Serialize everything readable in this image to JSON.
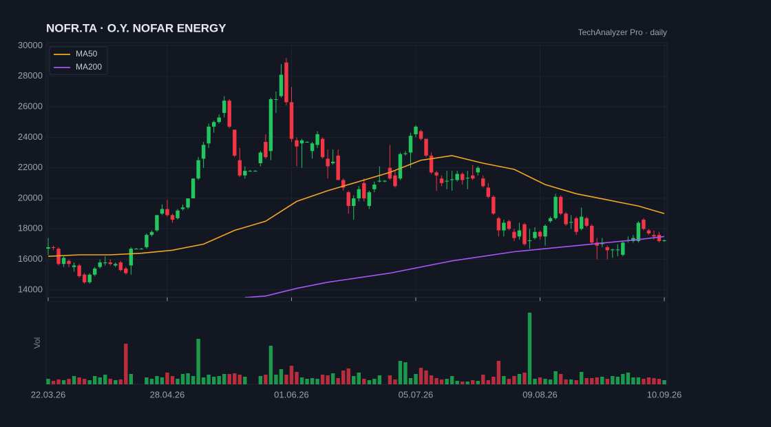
{
  "chart_data": {
    "type": "candlestick",
    "title": "NOFR.TA  ·  O.Y. NOFAR ENERGY",
    "subtitle": "TechAnalyzer Pro · daily",
    "volume_label": "Vol",
    "legend": "upper left",
    "grid": true,
    "up_color": "#22c55e",
    "down_color": "#f23645",
    "xlim": [
      0,
      119
    ],
    "xticks": [
      {
        "value": 0,
        "label": "22.03.26"
      },
      {
        "value": 23,
        "label": "28.04.26"
      },
      {
        "value": 47,
        "label": "01.06.26"
      },
      {
        "value": 71,
        "label": "05.07.26"
      },
      {
        "value": 95,
        "label": "09.08.26"
      },
      {
        "value": 119,
        "label": "10.09.26"
      }
    ],
    "ylim": [
      13500,
      30200
    ],
    "yticks": [
      14000,
      16000,
      18000,
      20000,
      22000,
      24000,
      26000,
      28000,
      30000
    ],
    "volume_ylim": [
      0,
      118
    ],
    "ohlc": [
      [
        16700,
        17400,
        16300,
        16800
      ],
      [
        16800,
        16900,
        16600,
        16750
      ],
      [
        16700,
        16800,
        15600,
        15700
      ],
      [
        15700,
        16200,
        15500,
        16100
      ],
      [
        15900,
        16000,
        15500,
        15700
      ],
      [
        15500,
        15800,
        15200,
        15600
      ],
      [
        15600,
        15700,
        14800,
        14900
      ],
      [
        15000,
        15100,
        14400,
        14500
      ],
      [
        14500,
        15100,
        14400,
        15000
      ],
      [
        15000,
        15500,
        14900,
        15400
      ],
      [
        15500,
        16000,
        15400,
        15800
      ],
      [
        15750,
        16200,
        15600,
        15800
      ],
      [
        15800,
        16000,
        15600,
        15700
      ],
      [
        15600,
        15800,
        15500,
        15700
      ],
      [
        15800,
        15900,
        15200,
        15300
      ],
      [
        15400,
        15500,
        15000,
        15100
      ],
      [
        15600,
        16800,
        15000,
        16700
      ],
      [
        16700,
        16750,
        16650,
        16700
      ],
      [
        16700,
        16750,
        16650,
        16700
      ],
      [
        16800,
        17700,
        16700,
        17600
      ],
      [
        17600,
        17900,
        17500,
        17800
      ],
      [
        17900,
        18900,
        17800,
        18900
      ],
      [
        19000,
        19600,
        18900,
        19300
      ],
      [
        19300,
        19900,
        18800,
        18900
      ],
      [
        18900,
        19000,
        18400,
        18600
      ],
      [
        18700,
        19300,
        18600,
        19200
      ],
      [
        19300,
        19600,
        19200,
        19400
      ],
      [
        19400,
        20000,
        19300,
        20000
      ],
      [
        20000,
        21300,
        20000,
        21300
      ],
      [
        21300,
        22700,
        21200,
        22500
      ],
      [
        22600,
        23700,
        22000,
        23500
      ],
      [
        23600,
        24900,
        23300,
        24700
      ],
      [
        24700,
        25100,
        24300,
        25000
      ],
      [
        25000,
        25500,
        24900,
        25300
      ],
      [
        25600,
        26700,
        25300,
        26400
      ],
      [
        26400,
        26500,
        24600,
        24700
      ],
      [
        24500,
        24500,
        22700,
        22800
      ],
      [
        22500,
        23300,
        21400,
        21500
      ],
      [
        21500,
        22100,
        21300,
        21800
      ],
      [
        21800,
        21850,
        21750,
        21800
      ],
      [
        21800,
        21850,
        21750,
        21800
      ],
      [
        22300,
        23100,
        22100,
        23000
      ],
      [
        23700,
        24200,
        22600,
        22700
      ],
      [
        23100,
        26600,
        22500,
        26500
      ],
      [
        26500,
        27000,
        25600,
        26500
      ],
      [
        26700,
        28800,
        26600,
        28100
      ],
      [
        28900,
        29200,
        26100,
        26300
      ],
      [
        26300,
        27300,
        23700,
        23900
      ],
      [
        23800,
        24000,
        22100,
        23400
      ],
      [
        23600,
        23900,
        22000,
        23800
      ],
      [
        23700,
        23750,
        23650,
        23700
      ],
      [
        23100,
        23700,
        22600,
        23600
      ],
      [
        23500,
        24400,
        23300,
        24200
      ],
      [
        23900,
        24000,
        22600,
        22700
      ],
      [
        22600,
        23200,
        21300,
        22100
      ],
      [
        22300,
        23200,
        22200,
        22400
      ],
      [
        22800,
        23200,
        21200,
        21200
      ],
      [
        21200,
        21300,
        20500,
        20700
      ],
      [
        20400,
        20500,
        19000,
        19500
      ],
      [
        19500,
        20200,
        18600,
        20000
      ],
      [
        20000,
        20800,
        19800,
        20600
      ],
      [
        21000,
        21300,
        19800,
        20000
      ],
      [
        19500,
        20500,
        19300,
        20400
      ],
      [
        20600,
        21100,
        20400,
        20900
      ],
      [
        21100,
        22100,
        21050,
        21150
      ],
      [
        21100,
        21200,
        21050,
        21150
      ],
      [
        22000,
        23500,
        21200,
        21300
      ],
      [
        21500,
        21800,
        20700,
        20800
      ],
      [
        21300,
        23000,
        21200,
        22900
      ],
      [
        22900,
        23100,
        22800,
        22950
      ],
      [
        23000,
        24300,
        22000,
        24100
      ],
      [
        24200,
        24800,
        24000,
        24700
      ],
      [
        24400,
        24500,
        23800,
        23900
      ],
      [
        23900,
        23900,
        22700,
        22800
      ],
      [
        22800,
        23000,
        21600,
        21700
      ],
      [
        21700,
        21800,
        20500,
        21500
      ],
      [
        21300,
        21500,
        20800,
        21000
      ],
      [
        21100,
        21800,
        20600,
        21150
      ],
      [
        21200,
        21800,
        20500,
        21250
      ],
      [
        21200,
        21800,
        21100,
        21600
      ],
      [
        21600,
        21700,
        20900,
        21200
      ],
      [
        21300,
        21800,
        20600,
        21350
      ],
      [
        21500,
        22200,
        21200,
        21300
      ],
      [
        21700,
        22100,
        21500,
        22000
      ],
      [
        21300,
        21500,
        20700,
        20800
      ],
      [
        20700,
        21000,
        20000,
        20100
      ],
      [
        20100,
        20200,
        18900,
        19000
      ],
      [
        18700,
        18800,
        17500,
        17900
      ],
      [
        17900,
        18600,
        17500,
        18400
      ],
      [
        18500,
        18600,
        17900,
        18000
      ],
      [
        17800,
        18000,
        17200,
        17400
      ],
      [
        17500,
        18400,
        17300,
        17900
      ],
      [
        18300,
        18400,
        16900,
        17000
      ],
      [
        17200,
        18000,
        16700,
        17250
      ],
      [
        17400,
        18100,
        17300,
        17800
      ],
      [
        17800,
        17900,
        17300,
        17500
      ],
      [
        17500,
        18300,
        16900,
        18200
      ],
      [
        18500,
        18800,
        18400,
        18700
      ],
      [
        18700,
        20300,
        18600,
        20100
      ],
      [
        20100,
        20200,
        18900,
        19000
      ],
      [
        19000,
        19100,
        18200,
        18300
      ],
      [
        18400,
        18900,
        18000,
        18450
      ],
      [
        18700,
        18800,
        17600,
        17800
      ],
      [
        18000,
        19400,
        17900,
        18800
      ],
      [
        18700,
        18800,
        18100,
        18200
      ],
      [
        18200,
        18300,
        17000,
        17100
      ],
      [
        17100,
        17400,
        16000,
        16900
      ],
      [
        17000,
        17400,
        16800,
        17100
      ],
      [
        16800,
        16900,
        16000,
        16600
      ],
      [
        16600,
        16700,
        16100,
        16650
      ],
      [
        16600,
        17000,
        16200,
        16650
      ],
      [
        16300,
        17200,
        16200,
        17100
      ],
      [
        17200,
        17500,
        17100,
        17250
      ],
      [
        17200,
        17600,
        17100,
        17400
      ],
      [
        17200,
        18500,
        17100,
        18400
      ],
      [
        18600,
        18700,
        17900,
        18000
      ],
      [
        17900,
        18000,
        17600,
        17700
      ],
      [
        17600,
        17900,
        17300,
        17500
      ],
      [
        17600,
        17800,
        17100,
        17200
      ],
      [
        17200,
        17300,
        17150,
        17250
      ]
    ],
    "volume": [
      8,
      5,
      7,
      6,
      8,
      12,
      10,
      8,
      6,
      12,
      10,
      14,
      8,
      6,
      7,
      59,
      15,
      0,
      0,
      10,
      8,
      12,
      10,
      17,
      12,
      8,
      15,
      16,
      12,
      66,
      10,
      14,
      11,
      12,
      15,
      15,
      16,
      14,
      11,
      0,
      0,
      12,
      14,
      56,
      14,
      22,
      14,
      27,
      18,
      10,
      8,
      9,
      8,
      14,
      13,
      16,
      9,
      20,
      23,
      12,
      17,
      8,
      6,
      8,
      13,
      0,
      13,
      7,
      34,
      32,
      9,
      15,
      24,
      20,
      13,
      9,
      7,
      8,
      12,
      5,
      4,
      4,
      6,
      5,
      14,
      6,
      11,
      34,
      12,
      8,
      12,
      15,
      17,
      104,
      8,
      10,
      8,
      7,
      19,
      15,
      7,
      7,
      6,
      18,
      9,
      9,
      10,
      11,
      8,
      12,
      11,
      15,
      17,
      10,
      10,
      8,
      10,
      9,
      8,
      6
    ],
    "series": [
      {
        "name": "MA50",
        "color": "#f5a623",
        "x": [
          0,
          6,
          12,
          18,
          24,
          30,
          36,
          42,
          48,
          54,
          60,
          66,
          72,
          78,
          84,
          90,
          96,
          102,
          108,
          114,
          119
        ],
        "values": [
          16200,
          16300,
          16300,
          16400,
          16600,
          17000,
          17900,
          18500,
          19800,
          20500,
          21100,
          21700,
          22500,
          22800,
          22300,
          21900,
          20900,
          20300,
          19900,
          19500,
          19000
        ]
      },
      {
        "name": "MA200",
        "color": "#a855f7",
        "x": [
          38,
          42,
          48,
          54,
          60,
          66,
          72,
          78,
          84,
          90,
          96,
          102,
          108,
          114,
          119
        ],
        "values": [
          13500,
          13600,
          14100,
          14500,
          14800,
          15100,
          15500,
          15900,
          16200,
          16500,
          16700,
          16900,
          17100,
          17300,
          17500
        ]
      }
    ]
  }
}
